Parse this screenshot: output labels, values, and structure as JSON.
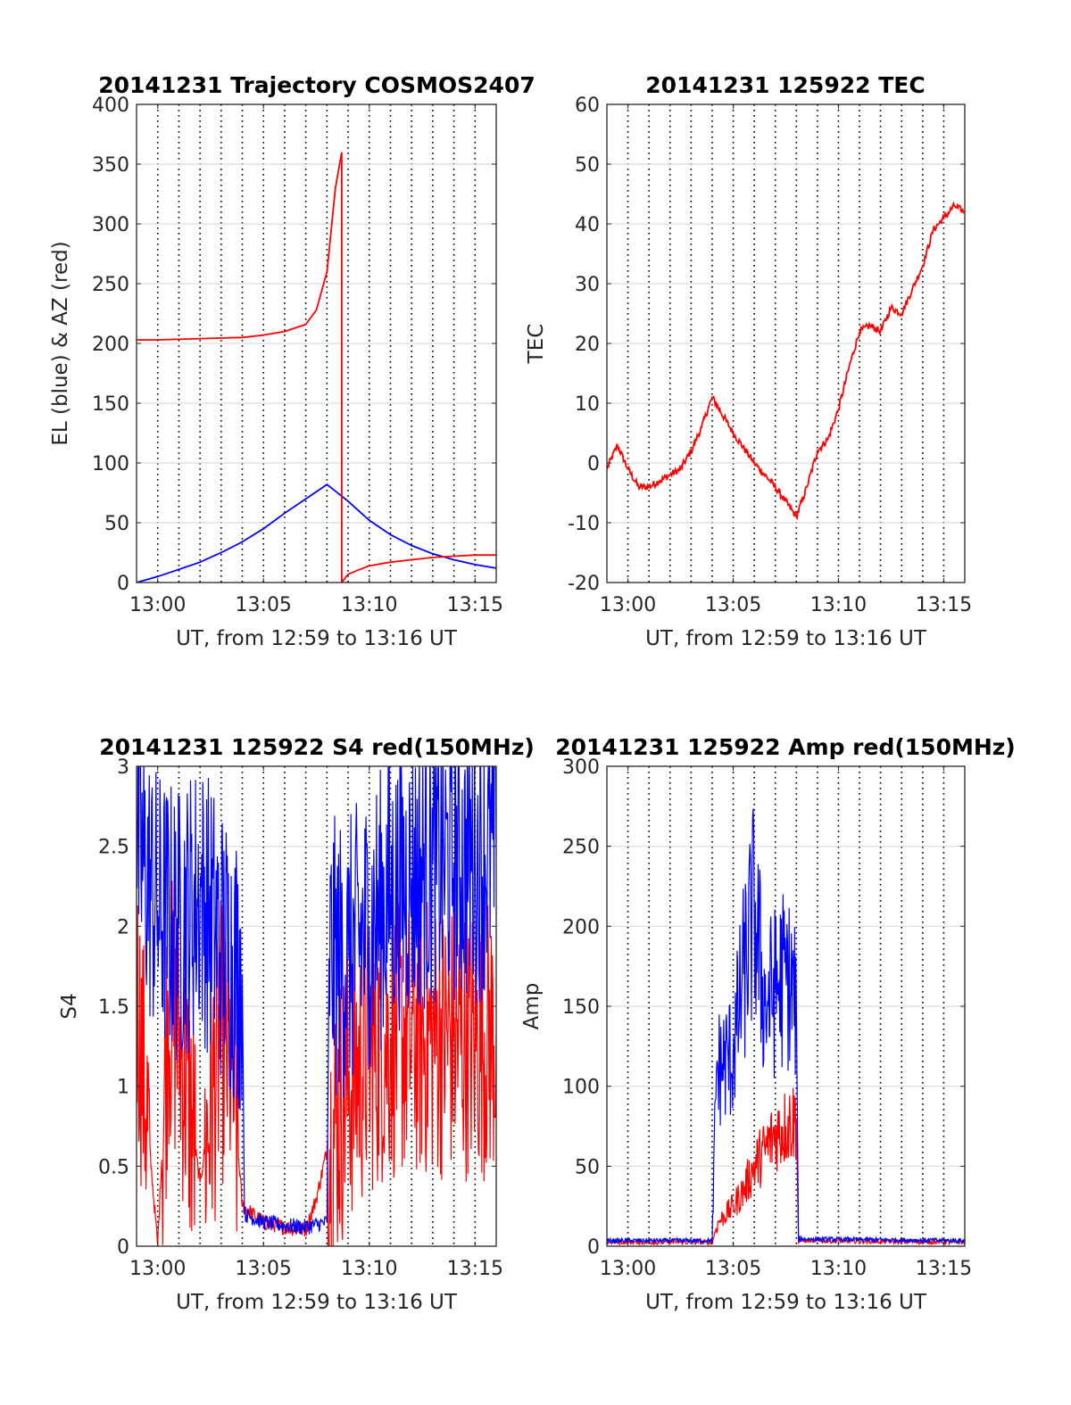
{
  "chart_data": [
    {
      "type": "line",
      "title": "20141231 Trajectory COSMOS2407",
      "xlabel": "UT, from 12:59 to 13:16 UT",
      "ylabel": "EL (blue) & AZ (red)",
      "xlim": [
        "12:59",
        "13:16"
      ],
      "ylim": [
        0,
        400
      ],
      "xticks": [
        "13:00",
        "13:05",
        "13:10",
        "13:15"
      ],
      "yticks": [
        "0",
        "50",
        "100",
        "150",
        "200",
        "250",
        "300",
        "350",
        "400"
      ],
      "grid": true,
      "series": [
        {
          "color": "#0000ff",
          "points": [
            [
              "12:59",
              0
            ],
            [
              "13:00",
              5
            ],
            [
              "13:01",
              11
            ],
            [
              "13:02",
              17
            ],
            [
              "13:03",
              25
            ],
            [
              "13:04",
              34
            ],
            [
              "13:05",
              45
            ],
            [
              "13:06",
              58
            ],
            [
              "13:07",
              70
            ],
            [
              "13:08",
              82
            ],
            [
              "13:09",
              68
            ],
            [
              "13:10",
              52
            ],
            [
              "13:11",
              40
            ],
            [
              "13:12",
              31
            ],
            [
              "13:13",
              24
            ],
            [
              "13:14",
              19
            ],
            [
              "13:15",
              15
            ],
            [
              "13:16",
              12
            ]
          ]
        },
        {
          "color": "#ff0000",
          "points": [
            [
              "12:59",
              203
            ],
            [
              "13:00",
              203
            ],
            [
              "13:02",
              204
            ],
            [
              "13:04",
              205
            ],
            [
              "13:05",
              207
            ],
            [
              "13:06",
              210
            ],
            [
              "13:07",
              216
            ],
            [
              "13:07.5",
              228
            ],
            [
              "13:08",
              260
            ],
            [
              "13:08.4",
              330
            ],
            [
              "13:08.7",
              360
            ],
            [
              "13:08.7",
              0
            ],
            [
              "13:09",
              7
            ],
            [
              "13:10",
              14
            ],
            [
              "13:11",
              17
            ],
            [
              "13:12",
              19
            ],
            [
              "13:13",
              21
            ],
            [
              "13:14",
              22
            ],
            [
              "13:15",
              23
            ],
            [
              "13:16",
              23
            ]
          ]
        }
      ]
    },
    {
      "type": "line",
      "title": "20141231 125922 TEC",
      "xlabel": "UT, from 12:59 to 13:16 UT",
      "ylabel": "TEC",
      "xlim": [
        "12:59",
        "13:16"
      ],
      "ylim": [
        -20,
        60
      ],
      "xticks": [
        "13:00",
        "13:05",
        "13:10",
        "13:15"
      ],
      "yticks": [
        "-20",
        "-10",
        "0",
        "10",
        "20",
        "30",
        "40",
        "50",
        "60"
      ],
      "grid": true,
      "series": [
        {
          "color": "#ff0000",
          "points": [
            [
              "12:59",
              -1
            ],
            [
              "12:59.5",
              3
            ],
            [
              "13:00",
              -1
            ],
            [
              "13:00.5",
              -4
            ],
            [
              "13:01",
              -4
            ],
            [
              "13:01.5",
              -3
            ],
            [
              "13:02",
              -2
            ],
            [
              "13:02.5",
              -1
            ],
            [
              "13:03",
              2
            ],
            [
              "13:03.5",
              6
            ],
            [
              "13:04",
              11
            ],
            [
              "13:05",
              5
            ],
            [
              "13:06",
              0
            ],
            [
              "13:07",
              -4
            ],
            [
              "13:08",
              -9
            ],
            [
              "13:08.5",
              -4
            ],
            [
              "13:09",
              2
            ],
            [
              "13:09.5",
              4
            ],
            [
              "13:10",
              9
            ],
            [
              "13:10.5",
              16
            ],
            [
              "13:11",
              22
            ],
            [
              "13:11.5",
              23
            ],
            [
              "13:12",
              22
            ],
            [
              "13:12.5",
              26
            ],
            [
              "13:13",
              25
            ],
            [
              "13:13.5",
              29
            ],
            [
              "13:14",
              33
            ],
            [
              "13:14.5",
              39
            ],
            [
              "13:15",
              41
            ],
            [
              "13:15.5",
              43
            ],
            [
              "13:16",
              42
            ]
          ]
        }
      ]
    },
    {
      "type": "line",
      "title": "20141231 125922 S4 red(150MHz)",
      "xlabel": "UT, from 12:59 to 13:16 UT",
      "ylabel": "S4",
      "xlim": [
        "12:59",
        "13:16"
      ],
      "ylim": [
        0,
        3
      ],
      "xticks": [
        "13:00",
        "13:05",
        "13:10",
        "13:15"
      ],
      "yticks": [
        "0",
        "0.5",
        "1",
        "1.5",
        "2",
        "2.5",
        "3"
      ],
      "grid": true,
      "series": [
        {
          "color": "#ff0000",
          "points": [
            [
              "12:59",
              1.6
            ],
            [
              "13:00",
              0
            ],
            [
              "13:00.5",
              1.5
            ],
            [
              "13:01",
              1.3
            ],
            [
              "13:02",
              0.4
            ],
            [
              "13:03",
              1.3
            ],
            [
              "13:03.5",
              1.1
            ],
            [
              "13:04",
              0.25
            ],
            [
              "13:05",
              0.15
            ],
            [
              "13:06",
              0.12
            ],
            [
              "13:07",
              0.1
            ],
            [
              "13:07.5",
              0.3
            ],
            [
              "13:08",
              0.6
            ],
            [
              "13:09",
              1.0
            ],
            [
              "13:10",
              1.2
            ],
            [
              "13:11",
              1.3
            ],
            [
              "13:12",
              1.3
            ],
            [
              "13:13",
              1.3
            ],
            [
              "13:14",
              1.3
            ],
            [
              "13:15",
              1.3
            ],
            [
              "13:16",
              1.3
            ]
          ]
        },
        {
          "color": "#0000ff",
          "points": [
            [
              "12:59",
              2.5
            ],
            [
              "13:00",
              2.1
            ],
            [
              "13:01",
              2.0
            ],
            [
              "13:02",
              2.2
            ],
            [
              "13:03",
              1.9
            ],
            [
              "13:04",
              1.7
            ],
            [
              "13:04.1",
              0.2
            ],
            [
              "13:05",
              0.15
            ],
            [
              "13:06",
              0.13
            ],
            [
              "13:07",
              0.12
            ],
            [
              "13:08",
              0.15
            ],
            [
              "13:08.1",
              1.8
            ],
            [
              "13:09",
              1.8
            ],
            [
              "13:10",
              2.0
            ],
            [
              "13:11",
              2.2
            ],
            [
              "13:12",
              2.3
            ],
            [
              "13:13",
              2.4
            ],
            [
              "13:14",
              2.4
            ],
            [
              "13:15",
              2.4
            ],
            [
              "13:16",
              2.5
            ]
          ]
        }
      ]
    },
    {
      "type": "line",
      "title": "20141231 125922 Amp red(150MHz)",
      "xlabel": "UT, from 12:59 to 13:16 UT",
      "ylabel": "Amp",
      "xlim": [
        "12:59",
        "13:16"
      ],
      "ylim": [
        0,
        300
      ],
      "xticks": [
        "13:00",
        "13:05",
        "13:10",
        "13:15"
      ],
      "yticks": [
        "0",
        "50",
        "100",
        "150",
        "200",
        "250",
        "300"
      ],
      "grid": true,
      "series": [
        {
          "color": "#ff0000",
          "points": [
            [
              "12:59",
              1
            ],
            [
              "13:04",
              1
            ],
            [
              "13:04.3",
              15
            ],
            [
              "13:05",
              25
            ],
            [
              "13:05.5",
              35
            ],
            [
              "13:06",
              50
            ],
            [
              "13:06.5",
              60
            ],
            [
              "13:07",
              70
            ],
            [
              "13:07.5",
              75
            ],
            [
              "13:08",
              80
            ],
            [
              "13:08.1",
              2
            ],
            [
              "13:16",
              1
            ]
          ]
        },
        {
          "color": "#0000ff",
          "points": [
            [
              "12:59",
              2
            ],
            [
              "13:04",
              2
            ],
            [
              "13:04.2",
              110
            ],
            [
              "13:05",
              120
            ],
            [
              "13:05.5",
              170
            ],
            [
              "13:06",
              210
            ],
            [
              "13:06.5",
              150
            ],
            [
              "13:07",
              160
            ],
            [
              "13:07.5",
              170
            ],
            [
              "13:08",
              150
            ],
            [
              "13:08.1",
              3
            ],
            [
              "13:16",
              2
            ]
          ]
        }
      ]
    }
  ]
}
